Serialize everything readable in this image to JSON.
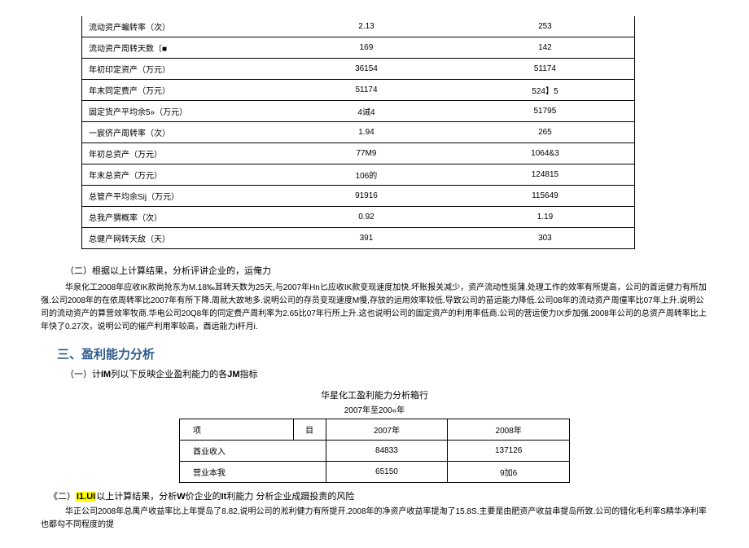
{
  "table1": {
    "rows": [
      {
        "label": "流动资产蝙转率（次）",
        "col1": "2.13",
        "col2": "253"
      },
      {
        "label": "流动资产周转天数〔■",
        "col1": "169",
        "col2": "142"
      },
      {
        "label": "年初印定资产（万元）",
        "col1": "36154",
        "col2": "51174"
      },
      {
        "label": "年末同定费产（万元）",
        "col1": "51174",
        "col2": "524】5"
      },
      {
        "label": "固定货产平均余5»（万元）",
        "col1": "4诫4",
        "col2": "51795"
      },
      {
        "label": "一宸侪产周转率（次）",
        "col1": "1.94",
        "col2": "265"
      },
      {
        "label": "年初总资产（万元）",
        "col1": "77M9",
        "col2": "1064&3"
      },
      {
        "label": "年末总资产（万元）",
        "col1": "106的",
        "col2": "124815"
      },
      {
        "label": "总管产平均余Sij（万元）",
        "col1": "91916",
        "col2": "115649"
      },
      {
        "label": "总我产猬概率（次）",
        "col1": "0.92",
        "col2": "1.19"
      },
      {
        "label": "总健产网转天敌（天）",
        "col1": "391",
        "col2": "303"
      }
    ]
  },
  "section2": {
    "header": "（二）根据以上计算结果，分析评讲企业的，运俺力",
    "paragraph": "华泉化工2008年应收IK款尚抢东为M.18‰耳转天数为25天,与2007年Hn匕应收IK款变现速度加快.坏账报关减少，资产流动性挺蒲.处理工作的效率有所提高，公司的首运健力有所加强.公司2008年的在依周转率比2007年有所下降.周就大故地多.说明公司的存员变现速度M慢,存放的运用效率较低.导致公司的苗运能力降低.公司08年的流动资产周僮率比07年上升.说明公司的流动资产的算营效率牧商.华电公司20Q8年的同定费产周利率为2.65比07年行所上升.这也说明公司的固定资产的利用率低商.公司的营运使力IX步加强.2008年公司的总资产周转率比上年快了0.27次，说明公司的催产利用率较高，酉运能力i杆月i."
  },
  "section3": {
    "title": "三、盈利能力分析",
    "sub1_prefix": "（一）计",
    "sub1_bold": "IM",
    "sub1_mid": "列以下反映企业盈利能力的各",
    "sub1_bold2": "JM",
    "sub1_suffix": "指标",
    "table_title": "华星化工盈利能力分析箱行",
    "table_subtitle": "2007年至200«年",
    "table2": {
      "header": {
        "c1a": "项",
        "c1b": "目",
        "c2": "2007年",
        "c3": "2008年"
      },
      "rows": [
        {
          "label": "酋业收入",
          "col1": "84833",
          "col2": "137126"
        },
        {
          "label": "营业本我",
          "col1": "65150",
          "col2": "9加6"
        }
      ]
    }
  },
  "section4": {
    "prefix": "《二）",
    "hl": "I1.UI",
    "mid1": "以上计算结果，分析",
    "bold1": "W",
    "mid2": "价企业的",
    "bold2": "It",
    "suffix": "利能力 分析企业成蹑投责的风险",
    "paragraph": "华正公司2008年总禺产收益率比上年提岛了8.82,说明公司的淞利健力有所提开.2008年的净资产收益率提淘了15.8S.主要是由肥资产收益串提岛所致.公司的错化毛利率S精华净利率也都勾不同程度的提"
  }
}
